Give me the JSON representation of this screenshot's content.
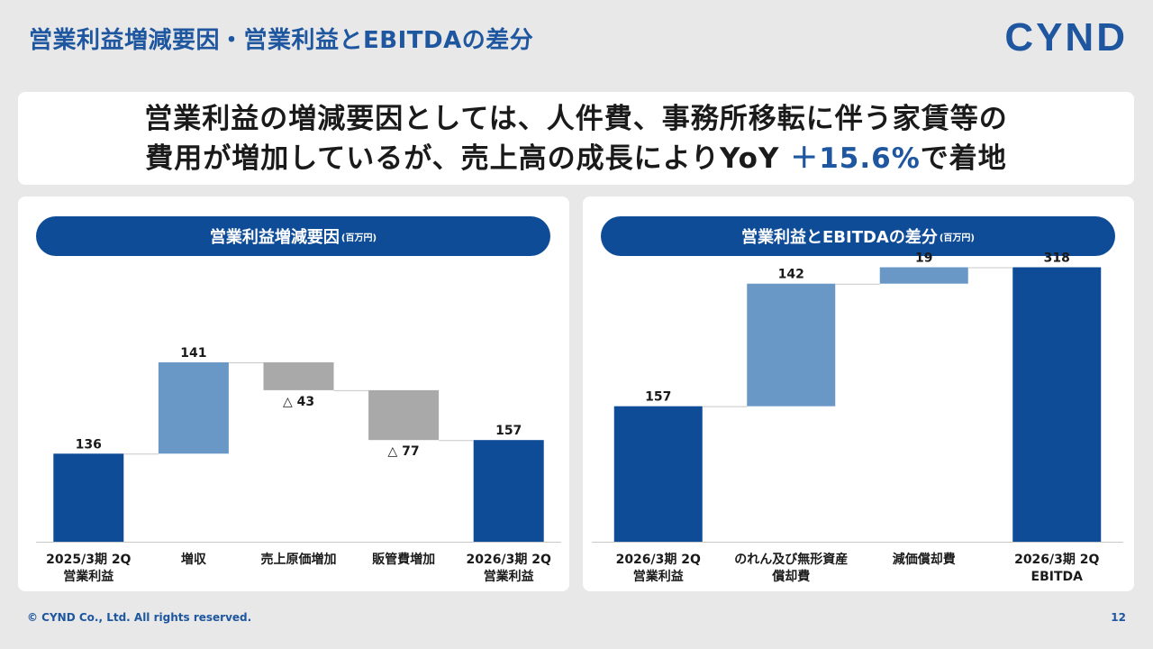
{
  "page": {
    "title": "営業利益増減要因・営業利益とEBITDAの差分",
    "logo": "CYND",
    "headline": {
      "line1": "営業利益の増減要因としては、人件費、事務所移転に伴う家賃等の",
      "line2_before": "費用が増加しているが、売上高の成長によりYoY ",
      "line2_accent": "＋15.6%",
      "line2_after": "で着地"
    },
    "footer": {
      "copyright": "© CYND Co., Ltd. All rights reserved.",
      "page_number": "12"
    }
  },
  "colors": {
    "brand": "#1e56a0",
    "bar_total": "#0f4c97",
    "bar_increase": "#6a98c6",
    "bar_decrease": "#a9a9a9"
  },
  "chart_data": [
    {
      "type": "waterfall",
      "title": "営業利益増減要因",
      "unit_label": "(百万円)",
      "categories": [
        {
          "line1": "2025/3期 2Q",
          "line2": "営業利益"
        },
        {
          "line1": "増収",
          "line2": ""
        },
        {
          "line1": "売上原価増加",
          "line2": ""
        },
        {
          "line1": "販管費増加",
          "line2": ""
        },
        {
          "line1": "2026/3期 2Q",
          "line2": "営業利益"
        }
      ],
      "steps": [
        {
          "kind": "total",
          "value": 136,
          "label": "136"
        },
        {
          "kind": "increase",
          "value": 141,
          "label": "141"
        },
        {
          "kind": "decrease",
          "value": -43,
          "label": "△ 43"
        },
        {
          "kind": "decrease",
          "value": -77,
          "label": "△ 77"
        },
        {
          "kind": "total",
          "value": 157,
          "label": "157"
        }
      ],
      "ylim": [
        0,
        540
      ]
    },
    {
      "type": "waterfall",
      "title": "営業利益とEBITDAの差分",
      "unit_label": "(百万円)",
      "categories": [
        {
          "line1": "2026/3期 2Q",
          "line2": "営業利益"
        },
        {
          "line1": "のれん及び無形資産",
          "line2": "償却費"
        },
        {
          "line1": "減価償却費",
          "line2": ""
        },
        {
          "line1": "2026/3期 2Q",
          "line2": "EBITDA"
        }
      ],
      "steps": [
        {
          "kind": "total",
          "value": 157,
          "label": "157"
        },
        {
          "kind": "increase",
          "value": 142,
          "label": "142"
        },
        {
          "kind": "increase",
          "value": 19,
          "label": "19"
        },
        {
          "kind": "total",
          "value": 318,
          "label": "318"
        }
      ],
      "ylim": [
        0,
        400
      ]
    }
  ]
}
